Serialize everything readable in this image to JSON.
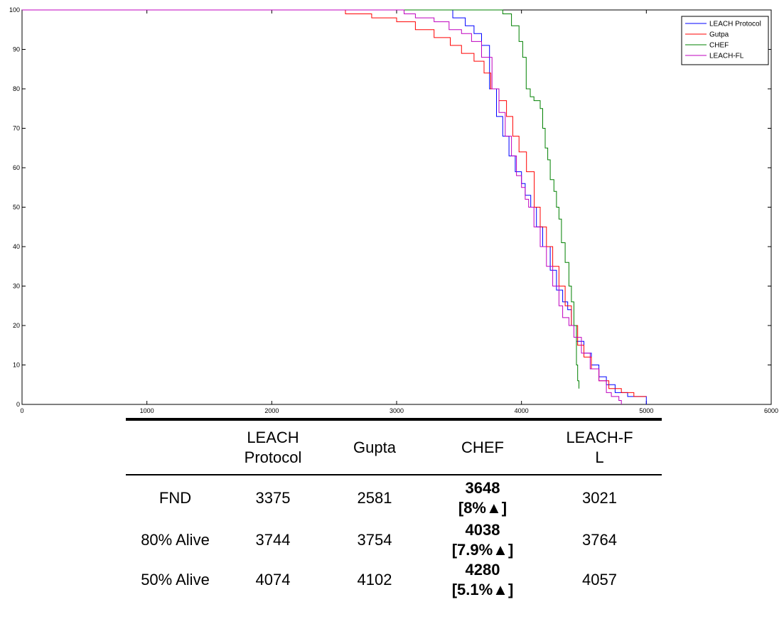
{
  "chart_data": {
    "type": "line",
    "xlim": [
      0,
      6000
    ],
    "ylim": [
      0,
      100
    ],
    "x_ticks": [
      "0",
      "1000",
      "2000",
      "3000",
      "4000",
      "5000",
      "6000"
    ],
    "y_ticks": [
      "0",
      "10",
      "20",
      "30",
      "40",
      "50",
      "60",
      "70",
      "80",
      "90",
      "100"
    ],
    "grid": false,
    "legend_position": "top-right",
    "series": [
      {
        "name": "LEACH Protocol",
        "color": "#0000ff",
        "points": [
          [
            0,
            100
          ],
          [
            3375,
            100
          ],
          [
            3450,
            98
          ],
          [
            3550,
            96
          ],
          [
            3620,
            94
          ],
          [
            3680,
            91
          ],
          [
            3744,
            80
          ],
          [
            3800,
            73
          ],
          [
            3850,
            68
          ],
          [
            3900,
            63
          ],
          [
            3950,
            59
          ],
          [
            4000,
            56
          ],
          [
            4030,
            53
          ],
          [
            4074,
            50
          ],
          [
            4120,
            45
          ],
          [
            4170,
            40
          ],
          [
            4230,
            34
          ],
          [
            4280,
            29
          ],
          [
            4330,
            26
          ],
          [
            4370,
            24
          ],
          [
            4400,
            20
          ],
          [
            4440,
            16
          ],
          [
            4500,
            13
          ],
          [
            4560,
            10
          ],
          [
            4620,
            7
          ],
          [
            4680,
            5
          ],
          [
            4750,
            3
          ],
          [
            4850,
            2
          ],
          [
            5000,
            0
          ]
        ]
      },
      {
        "name": "Gutpa",
        "color": "#ff0000",
        "points": [
          [
            0,
            100
          ],
          [
            2581,
            100
          ],
          [
            2590,
            99
          ],
          [
            2800,
            98
          ],
          [
            3000,
            97
          ],
          [
            3150,
            95
          ],
          [
            3300,
            93
          ],
          [
            3430,
            91
          ],
          [
            3520,
            89
          ],
          [
            3620,
            87
          ],
          [
            3700,
            84
          ],
          [
            3754,
            80
          ],
          [
            3820,
            77
          ],
          [
            3880,
            73
          ],
          [
            3930,
            68
          ],
          [
            3980,
            64
          ],
          [
            4040,
            59
          ],
          [
            4102,
            50
          ],
          [
            4150,
            45
          ],
          [
            4200,
            40
          ],
          [
            4250,
            35
          ],
          [
            4300,
            30
          ],
          [
            4350,
            25
          ],
          [
            4400,
            20
          ],
          [
            4450,
            15
          ],
          [
            4500,
            12
          ],
          [
            4560,
            9
          ],
          [
            4620,
            6
          ],
          [
            4700,
            4
          ],
          [
            4800,
            3
          ],
          [
            4900,
            2
          ],
          [
            5000,
            2
          ]
        ]
      },
      {
        "name": "CHEF",
        "color": "#008000",
        "points": [
          [
            0,
            100
          ],
          [
            3648,
            100
          ],
          [
            3780,
            100
          ],
          [
            3850,
            99
          ],
          [
            3920,
            96
          ],
          [
            3980,
            92
          ],
          [
            4010,
            88
          ],
          [
            4038,
            80
          ],
          [
            4070,
            78
          ],
          [
            4100,
            77
          ],
          [
            4150,
            75
          ],
          [
            4170,
            70
          ],
          [
            4190,
            65
          ],
          [
            4210,
            62
          ],
          [
            4230,
            57
          ],
          [
            4260,
            54
          ],
          [
            4280,
            50
          ],
          [
            4300,
            47
          ],
          [
            4320,
            41
          ],
          [
            4350,
            36
          ],
          [
            4380,
            30
          ],
          [
            4400,
            26
          ],
          [
            4420,
            20
          ],
          [
            4440,
            10
          ],
          [
            4450,
            6
          ],
          [
            4460,
            4
          ]
        ]
      },
      {
        "name": "LEACH-FL",
        "color": "#bf00bf",
        "points": [
          [
            0,
            100
          ],
          [
            3021,
            100
          ],
          [
            3060,
            99
          ],
          [
            3150,
            98
          ],
          [
            3300,
            97
          ],
          [
            3420,
            95
          ],
          [
            3520,
            94
          ],
          [
            3600,
            92
          ],
          [
            3680,
            88
          ],
          [
            3764,
            80
          ],
          [
            3820,
            74
          ],
          [
            3870,
            68
          ],
          [
            3920,
            63
          ],
          [
            3960,
            58
          ],
          [
            4000,
            55
          ],
          [
            4030,
            52
          ],
          [
            4057,
            50
          ],
          [
            4100,
            45
          ],
          [
            4150,
            40
          ],
          [
            4200,
            35
          ],
          [
            4250,
            30
          ],
          [
            4300,
            25
          ],
          [
            4330,
            22
          ],
          [
            4380,
            20
          ],
          [
            4420,
            17
          ],
          [
            4480,
            13
          ],
          [
            4550,
            9
          ],
          [
            4620,
            6
          ],
          [
            4680,
            3
          ],
          [
            4720,
            2
          ],
          [
            4780,
            1
          ],
          [
            4800,
            0
          ]
        ]
      }
    ]
  },
  "table": {
    "headers": [
      "",
      "LEACH Protocol",
      "Gupta",
      "CHEF",
      "LEACH-F L"
    ],
    "rows": [
      {
        "label": "FND",
        "leach": "3375",
        "gupta": "2581",
        "chef": "3648",
        "chef_gain": "[8%▲]",
        "leach_fl": "3021"
      },
      {
        "label": "80% Alive",
        "leach": "3744",
        "gupta": "3754",
        "chef": "4038",
        "chef_gain": "[7.9%▲]",
        "leach_fl": "3764"
      },
      {
        "label": "50% Alive",
        "leach": "4074",
        "gupta": "4102",
        "chef": "4280",
        "chef_gain": "[5.1%▲]",
        "leach_fl": "4057"
      }
    ]
  }
}
